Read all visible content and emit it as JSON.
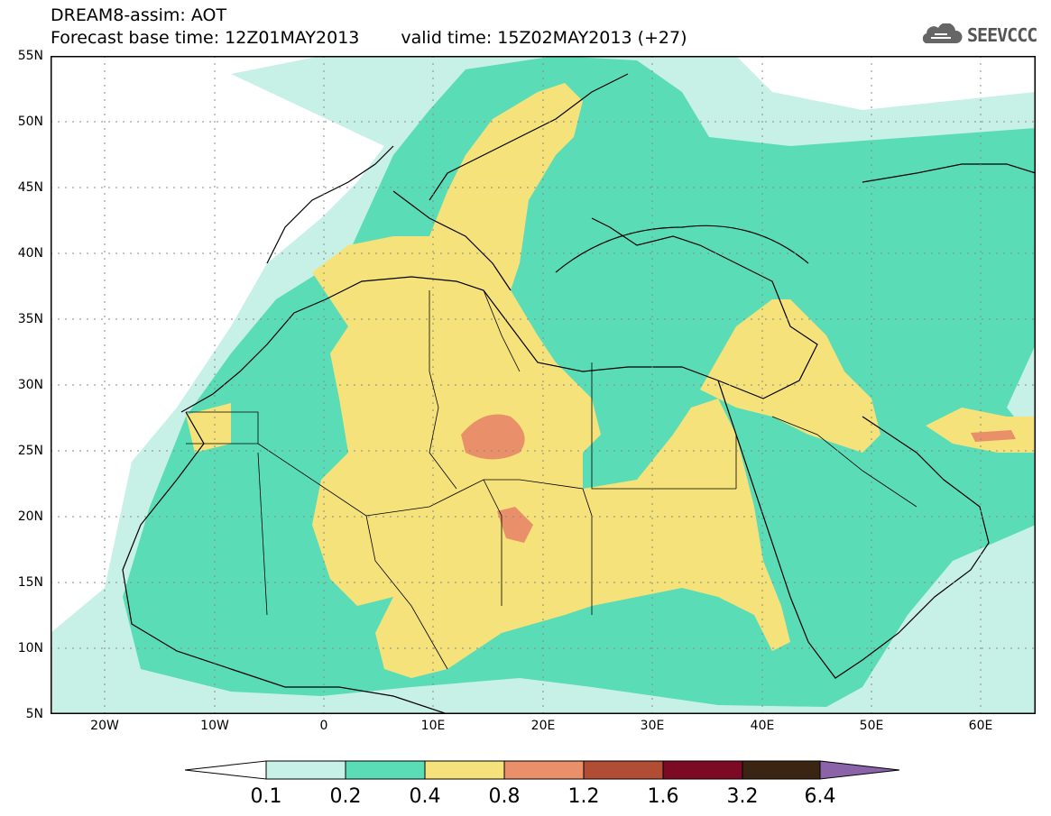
{
  "header": {
    "line1": "DREAM8-assim: AOT",
    "line2_base": "Forecast base time: 12Z01MAY2013",
    "line2_valid": "valid time: 15Z02MAY2013 (+27)",
    "logo_text": "SEEVCCC",
    "logo_icon": "cloud-icon"
  },
  "map": {
    "projection": "lat-lon",
    "lon_range": [
      -25,
      65
    ],
    "lat_range": [
      5,
      55
    ],
    "lat_labels": [
      "55N",
      "50N",
      "45N",
      "40N",
      "35N",
      "30N",
      "25N",
      "20N",
      "15N",
      "10N",
      "5N"
    ],
    "lon_labels": [
      "20W",
      "10W",
      "0",
      "10E",
      "20E",
      "30E",
      "40E",
      "50E",
      "60E"
    ],
    "grid": "dotted"
  },
  "colorbar": {
    "labels": [
      "0.1",
      "0.2",
      "0.4",
      "0.8",
      "1.2",
      "1.6",
      "3.2",
      "6.4"
    ],
    "colors": [
      "#ffffff",
      "#c7f1e6",
      "#5adcb6",
      "#f5e27a",
      "#e9906a",
      "#b14c35",
      "#7d0a25",
      "#3a2514",
      "#8a63a8"
    ]
  }
}
